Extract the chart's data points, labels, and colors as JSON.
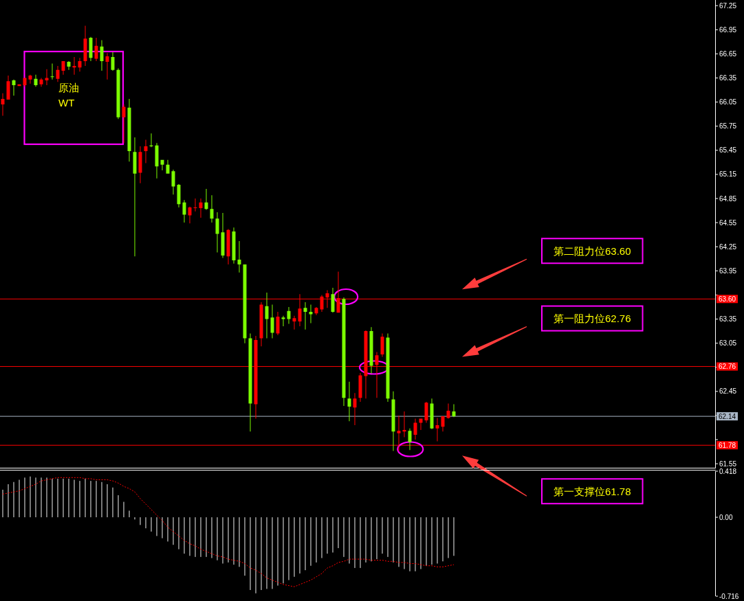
{
  "chart_data": [
    {
      "type": "candlestick",
      "categories": [
        null,
        null,
        null,
        null,
        null,
        null,
        null,
        null,
        null,
        null,
        null,
        null,
        null,
        null,
        null,
        null,
        null,
        null,
        null,
        null,
        null,
        null,
        null,
        null,
        null,
        null,
        null,
        null,
        null,
        null,
        null,
        null,
        null,
        null,
        null,
        null,
        null,
        null,
        null,
        null,
        null,
        null,
        null,
        null,
        null,
        null,
        null,
        null,
        null,
        null,
        null,
        null,
        null,
        null,
        null,
        null,
        null,
        null,
        null,
        null,
        null,
        null,
        null,
        null,
        null,
        null,
        null,
        null,
        null,
        null,
        null,
        null,
        null,
        null,
        null,
        null,
        null,
        null,
        null,
        null,
        null,
        null,
        null,
        null,
        null,
        null,
        null,
        null,
        null,
        null,
        null,
        null,
        null,
        null,
        null,
        null,
        null,
        null,
        null,
        null,
        null,
        null,
        null,
        null,
        null,
        null,
        null,
        null,
        null,
        null,
        null,
        null,
        null,
        null,
        null,
        null,
        null,
        null,
        null,
        null,
        null,
        null,
        null,
        null,
        null,
        null,
        null,
        null,
        null,
        null
      ],
      "ohlc": [
        [
          66.02,
          66.16,
          65.88,
          66.09
        ],
        [
          66.08,
          66.38,
          66.08,
          66.31
        ],
        [
          66.32,
          66.33,
          66.13,
          66.26
        ],
        [
          66.25,
          66.27,
          66.25,
          66.27
        ],
        [
          66.26,
          66.35,
          66.24,
          66.35
        ],
        [
          66.33,
          66.39,
          66.28,
          66.38
        ],
        [
          66.34,
          66.39,
          66.24,
          66.26
        ],
        [
          66.27,
          66.35,
          66.24,
          66.33
        ],
        [
          66.32,
          66.46,
          66.26,
          66.35
        ],
        [
          66.37,
          66.53,
          66.33,
          66.36
        ],
        [
          66.34,
          66.5,
          66.3,
          66.45
        ],
        [
          66.44,
          66.56,
          66.39,
          66.56
        ],
        [
          66.55,
          66.56,
          66.45,
          66.49
        ],
        [
          66.48,
          66.61,
          66.39,
          66.5
        ],
        [
          66.48,
          66.6,
          66.43,
          66.56
        ],
        [
          66.56,
          67.0,
          66.5,
          66.84
        ],
        [
          66.85,
          66.86,
          66.56,
          66.6
        ],
        [
          66.59,
          66.85,
          66.56,
          66.75
        ],
        [
          66.74,
          66.82,
          66.44,
          66.56
        ],
        [
          66.55,
          66.66,
          66.33,
          66.62
        ],
        [
          66.61,
          66.67,
          66.44,
          66.45
        ],
        [
          66.45,
          66.47,
          65.84,
          65.86
        ],
        [
          65.86,
          66.02,
          65.54,
          65.99
        ],
        [
          65.98,
          66.09,
          65.31,
          65.44
        ],
        [
          65.43,
          65.61,
          64.13,
          65.16
        ],
        [
          65.17,
          65.5,
          65.04,
          65.43
        ],
        [
          65.44,
          65.58,
          65.29,
          65.5
        ],
        [
          65.51,
          65.66,
          65.49,
          65.5
        ],
        [
          65.51,
          65.54,
          65.1,
          65.25
        ],
        [
          65.33,
          65.33,
          65.2,
          65.27
        ],
        [
          65.27,
          65.33,
          65.16,
          65.16
        ],
        [
          65.19,
          65.21,
          64.9,
          65.0
        ],
        [
          65.02,
          65.03,
          64.74,
          64.78
        ],
        [
          64.8,
          64.83,
          64.55,
          64.65
        ],
        [
          64.64,
          64.75,
          64.54,
          64.74
        ],
        [
          64.73,
          64.85,
          64.69,
          64.74
        ],
        [
          64.73,
          64.85,
          64.61,
          64.8
        ],
        [
          64.8,
          64.97,
          64.71,
          64.72
        ],
        [
          64.72,
          64.89,
          64.55,
          64.6
        ],
        [
          64.6,
          64.68,
          64.18,
          64.41
        ],
        [
          64.43,
          64.67,
          64.11,
          64.14
        ],
        [
          64.13,
          64.47,
          64.03,
          64.46
        ],
        [
          64.44,
          64.49,
          64.04,
          64.08
        ],
        [
          64.09,
          64.32,
          63.93,
          64.03
        ],
        [
          64.03,
          64.03,
          63.05,
          63.11
        ],
        [
          63.11,
          63.17,
          61.95,
          62.3
        ],
        [
          62.29,
          63.14,
          62.11,
          63.09
        ],
        [
          63.11,
          63.56,
          63.01,
          63.53
        ],
        [
          63.51,
          63.68,
          63.11,
          63.35
        ],
        [
          63.37,
          63.53,
          63.11,
          63.18
        ],
        [
          63.17,
          63.44,
          63.15,
          63.38
        ],
        [
          63.37,
          63.39,
          63.26,
          63.35
        ],
        [
          63.45,
          63.5,
          63.29,
          63.35
        ],
        [
          63.32,
          63.39,
          63.22,
          63.36
        ],
        [
          63.32,
          63.66,
          63.26,
          63.48
        ],
        [
          63.49,
          63.56,
          63.22,
          63.44
        ],
        [
          63.44,
          63.53,
          63.3,
          63.41
        ],
        [
          63.42,
          63.5,
          63.4,
          63.49
        ],
        [
          63.47,
          63.65,
          63.44,
          63.63
        ],
        [
          63.62,
          63.71,
          63.49,
          63.67
        ],
        [
          63.66,
          63.74,
          63.43,
          63.44
        ],
        [
          63.43,
          63.94,
          63.43,
          63.61
        ],
        [
          63.6,
          63.62,
          62.27,
          62.37
        ],
        [
          62.36,
          62.57,
          62.08,
          62.26
        ],
        [
          62.25,
          62.43,
          62.03,
          62.36
        ],
        [
          62.37,
          62.68,
          62.32,
          62.65
        ],
        [
          62.64,
          63.21,
          62.36,
          63.2
        ],
        [
          63.2,
          63.25,
          62.67,
          62.77
        ],
        [
          62.78,
          62.94,
          62.37,
          62.9
        ],
        [
          62.91,
          63.17,
          62.88,
          63.13
        ],
        [
          63.12,
          63.17,
          62.32,
          62.36
        ],
        [
          62.35,
          62.45,
          61.71,
          61.95
        ],
        [
          61.93,
          62.15,
          61.71,
          61.96
        ],
        [
          61.95,
          62.2,
          61.88,
          61.97
        ],
        [
          61.96,
          61.99,
          61.72,
          61.82
        ],
        [
          61.91,
          62.11,
          61.85,
          62.06
        ],
        [
          62.06,
          62.11,
          61.97,
          62.11
        ],
        [
          62.09,
          62.32,
          62.06,
          62.31
        ],
        [
          62.3,
          62.36,
          61.98,
          61.99
        ],
        [
          61.99,
          62.12,
          61.83,
          62.03
        ],
        [
          62.01,
          62.14,
          61.95,
          62.14
        ],
        [
          62.12,
          62.3,
          62.11,
          62.21
        ],
        [
          62.2,
          62.29,
          62.13,
          62.14
        ],
        null,
        null,
        null,
        null,
        null,
        null,
        null,
        null,
        null,
        null,
        null,
        null,
        null,
        null,
        null,
        null,
        null,
        null,
        null,
        null,
        null,
        null,
        null,
        null,
        null,
        null,
        null,
        null,
        null,
        null,
        null,
        null,
        null,
        null,
        null,
        null,
        null,
        null,
        null,
        null,
        null,
        null,
        null,
        null,
        null,
        null,
        null
      ],
      "colors": [
        "#ff0000",
        "#ff0000",
        "#7cfc00",
        "#ff0000",
        "#ff0000",
        "#ff0000",
        "#7cfc00",
        "#ff0000",
        "#ff0000",
        "#7cfc00",
        "#ff0000",
        "#ff0000",
        "#7cfc00",
        "#ff0000",
        "#ff0000",
        "#ff0000",
        "#7cfc00",
        "#ff0000",
        "#7cfc00",
        "#ff0000",
        "#7cfc00",
        "#7cfc00",
        "#ff0000",
        "#7cfc00",
        "#7cfc00",
        "#ff0000",
        "#ff0000",
        "#7cfc00",
        "#7cfc00",
        "#7cfc00",
        "#7cfc00",
        "#7cfc00",
        "#7cfc00",
        "#7cfc00",
        "#ff0000",
        "#ff0000",
        "#ff0000",
        "#7cfc00",
        "#7cfc00",
        "#7cfc00",
        "#7cfc00",
        "#ff0000",
        "#7cfc00",
        "#7cfc00",
        "#7cfc00",
        "#7cfc00",
        "#ff0000",
        "#ff0000",
        "#7cfc00",
        "#7cfc00",
        "#ff0000",
        "#7cfc00",
        "#7cfc00",
        "#ff0000",
        "#ff0000",
        "#7cfc00",
        "#7cfc00",
        "#ff0000",
        "#ff0000",
        "#ff0000",
        "#7cfc00",
        "#ff0000",
        "#7cfc00",
        "#7cfc00",
        "#ff0000",
        "#ff0000",
        "#ff0000",
        "#7cfc00",
        "#ff0000",
        "#ff0000",
        "#7cfc00",
        "#7cfc00",
        "#ff0000",
        "#ff0000",
        "#7cfc00",
        "#ff0000",
        "#ff0000",
        "#ff0000",
        "#7cfc00",
        "#ff0000",
        "#ff0000",
        "#ff0000",
        "#7cfc00",
        null,
        null,
        null,
        null,
        null,
        null,
        null,
        null,
        null,
        null,
        null,
        null,
        null,
        null,
        null,
        null,
        null,
        null,
        null,
        null,
        null,
        null,
        null,
        null,
        null,
        null,
        null,
        null,
        null,
        null,
        null,
        null,
        null,
        null,
        null,
        null,
        null,
        null,
        null,
        null,
        null,
        null,
        null,
        null,
        null,
        null,
        null
      ],
      "ylim": [
        61.5,
        67.32
      ],
      "yticks": [
        61.55,
        {
          "value": 61.85,
          "label": null
        },
        {
          "value": 62.15,
          "label": null
        },
        62.45,
        {
          "value": 62.75,
          "label": null
        },
        63.05,
        63.35,
        {
          "value": 63.65,
          "label": null
        },
        63.95,
        64.25,
        64.55,
        64.85,
        65.15,
        65.45,
        65.75,
        66.05,
        66.35,
        66.65,
        66.95,
        67.25
      ],
      "ref_lines": [
        {
          "axis": "y",
          "value": 63.6,
          "label": "63.60",
          "color": "#ff0000"
        },
        {
          "axis": "y",
          "value": 62.76,
          "label": "62.76",
          "color": "#ff0000"
        },
        {
          "axis": "y",
          "value": 61.78,
          "label": "61.78",
          "color": "#ff0000"
        },
        {
          "axis": "y",
          "value": 62.14,
          "label": "62.14",
          "color": "#a9b6c6"
        }
      ],
      "annotations": [
        "原油\nWT",
        "第二阻力位63.60",
        "第一阻力位62.76",
        "第一支撑位61.78"
      ],
      "tick_labels": "y"
    },
    {
      "type": "bar",
      "categories": [
        null,
        null,
        null,
        null,
        null,
        null,
        null,
        null,
        null,
        null,
        null,
        null,
        null,
        null,
        null,
        null,
        null,
        null,
        null,
        null,
        null,
        null,
        null,
        null,
        null,
        null,
        null,
        null,
        null,
        null,
        null,
        null,
        null,
        null,
        null,
        null,
        null,
        null,
        null,
        null,
        null,
        null,
        null,
        null,
        null,
        null,
        null,
        null,
        null,
        null,
        null,
        null,
        null,
        null,
        null,
        null,
        null,
        null,
        null,
        null,
        null,
        null,
        null,
        null,
        null,
        null,
        null,
        null,
        null,
        null,
        null,
        null,
        null,
        null,
        null,
        null,
        null,
        null,
        null,
        null,
        null,
        null,
        null,
        null,
        null,
        null,
        null,
        null,
        null,
        null,
        null,
        null,
        null,
        null,
        null,
        null,
        null,
        null,
        null,
        null,
        null,
        null,
        null,
        null,
        null,
        null,
        null,
        null,
        null,
        null,
        null,
        null,
        null,
        null,
        null,
        null,
        null,
        null,
        null,
        null,
        null,
        null,
        null,
        null,
        null,
        null,
        null,
        null,
        null,
        null
      ],
      "series": [
        {
          "color": "#c8c8c8",
          "values": [
            0.25,
            0.3,
            0.32,
            0.34,
            0.36,
            0.37,
            0.36,
            0.36,
            0.36,
            0.35,
            0.35,
            0.35,
            0.35,
            0.34,
            0.33,
            0.35,
            0.33,
            0.33,
            0.32,
            0.3,
            0.27,
            0.2,
            0.14,
            0.06,
            -0.02,
            -0.07,
            -0.1,
            -0.13,
            -0.17,
            -0.19,
            -0.22,
            -0.25,
            -0.29,
            -0.33,
            -0.35,
            -0.36,
            -0.36,
            -0.36,
            -0.37,
            -0.39,
            -0.42,
            -0.41,
            -0.43,
            -0.45,
            -0.53,
            -0.66,
            -0.69,
            -0.66,
            -0.65,
            -0.65,
            -0.62,
            -0.6,
            -0.57,
            -0.54,
            -0.51,
            -0.48,
            -0.44,
            -0.41,
            -0.37,
            -0.33,
            -0.32,
            -0.28,
            -0.36,
            -0.42,
            -0.46,
            -0.46,
            -0.41,
            -0.4,
            -0.38,
            -0.33,
            -0.36,
            -0.41,
            -0.45,
            -0.47,
            -0.49,
            -0.49,
            -0.47,
            -0.44,
            -0.43,
            -0.42,
            -0.4,
            -0.37,
            -0.35,
            null,
            null,
            null,
            null,
            null,
            null,
            null,
            null,
            null,
            null,
            null,
            null,
            null,
            null,
            null,
            null,
            null,
            null,
            null,
            null,
            null,
            null,
            null,
            null,
            null,
            null,
            null,
            null,
            null,
            null,
            null,
            null,
            null,
            null,
            null,
            null,
            null,
            null,
            null,
            null,
            null,
            null,
            null,
            null,
            null,
            null,
            null
          ]
        },
        {
          "type": "line",
          "color": "#ff0000",
          "line_style": "dotted",
          "values": [
            0.21,
            0.22,
            0.23,
            0.24,
            0.26,
            0.28,
            0.3,
            0.33,
            0.34,
            0.35,
            0.36,
            0.36,
            0.36,
            0.36,
            0.36,
            0.35,
            0.35,
            0.34,
            0.34,
            0.34,
            0.33,
            0.31,
            0.28,
            0.26,
            0.23,
            0.17,
            0.12,
            0.07,
            0.02,
            -0.03,
            -0.09,
            -0.13,
            -0.17,
            -0.21,
            -0.24,
            -0.26,
            -0.29,
            -0.31,
            -0.33,
            -0.35,
            -0.36,
            -0.38,
            -0.39,
            -0.4,
            -0.42,
            -0.46,
            -0.48,
            -0.51,
            -0.55,
            -0.57,
            -0.59,
            -0.61,
            -0.62,
            -0.63,
            -0.61,
            -0.59,
            -0.57,
            -0.54,
            -0.51,
            -0.46,
            -0.44,
            -0.41,
            -0.4,
            -0.38,
            -0.38,
            -0.38,
            -0.38,
            -0.39,
            -0.39,
            -0.39,
            -0.4,
            -0.4,
            -0.41,
            -0.41,
            -0.42,
            -0.42,
            -0.43,
            -0.44,
            -0.44,
            -0.45,
            -0.45,
            -0.44,
            -0.43,
            null,
            null,
            null,
            null,
            null,
            null,
            null,
            null,
            null,
            null,
            null,
            null,
            null,
            null,
            null,
            null,
            null,
            null,
            null,
            null,
            null,
            null,
            null,
            null,
            null,
            null,
            null,
            null,
            null,
            null,
            null,
            null,
            null,
            null,
            null,
            null,
            null,
            null,
            null,
            null,
            null,
            null,
            null,
            null,
            null,
            null,
            null
          ]
        }
      ],
      "ylim": [
        -0.716,
        0.418
      ],
      "yticks": [
        -0.716,
        {
          "value": 0,
          "label": "0.00"
        },
        0.418
      ],
      "tick_labels": "y"
    }
  ]
}
